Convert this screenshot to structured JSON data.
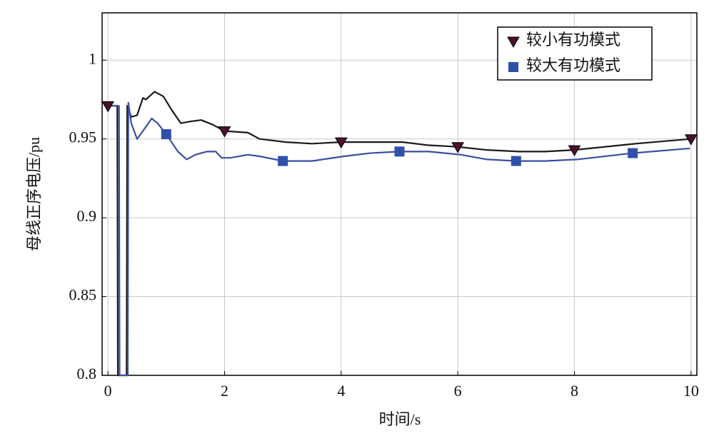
{
  "chart_data": {
    "type": "line",
    "xlabel": "时间/s",
    "ylabel": "母线正序电压/pu",
    "xlim": [
      -0.1,
      10.1
    ],
    "ylim": [
      0.8,
      1.03
    ],
    "xticks": [
      0,
      2,
      4,
      6,
      8,
      10
    ],
    "yticks": [
      0.8,
      0.85,
      0.9,
      0.95,
      1
    ],
    "grid": true,
    "legend": "upper right",
    "series": [
      {
        "name": "较小有功模式",
        "color": "#1a1a1a",
        "marker": "triangle-down",
        "marker_color": "#4a1030",
        "x": [
          0,
          0.16,
          0.17,
          0.32,
          0.33,
          0.4,
          0.5,
          0.6,
          0.65,
          0.8,
          0.95,
          1.1,
          1.25,
          1.4,
          1.6,
          1.8,
          2,
          2.4,
          2.6,
          3.05,
          3.5,
          4,
          4.5,
          5.05,
          5.5,
          6,
          6.5,
          7.05,
          7.5,
          8,
          9.05,
          10
        ],
        "values": [
          0.971,
          0.971,
          0.8,
          0.8,
          0.971,
          0.964,
          0.965,
          0.976,
          0.975,
          0.98,
          0.977,
          0.968,
          0.96,
          0.961,
          0.962,
          0.959,
          0.955,
          0.954,
          0.95,
          0.948,
          0.947,
          0.948,
          0.948,
          0.948,
          0.946,
          0.945,
          0.943,
          0.942,
          0.942,
          0.943,
          0.947,
          0.95
        ]
      },
      {
        "name": "较大有功模式",
        "color": "#3a4fa0",
        "marker": "square",
        "marker_color": "#3050a8",
        "x": [
          0.05,
          0.19,
          0.2,
          0.34,
          0.35,
          0.4,
          0.5,
          0.6,
          0.75,
          0.85,
          1,
          1.2,
          1.35,
          1.5,
          1.7,
          1.85,
          1.95,
          2.1,
          2.4,
          2.6,
          3,
          3.5,
          4.05,
          4.5,
          5,
          5.5,
          6.05,
          6.5,
          7,
          7.5,
          8.05,
          9,
          9.98
        ],
        "values": [
          0.971,
          0.971,
          0.8,
          0.8,
          0.973,
          0.96,
          0.95,
          0.955,
          0.963,
          0.96,
          0.953,
          0.942,
          0.937,
          0.94,
          0.942,
          0.942,
          0.938,
          0.938,
          0.94,
          0.939,
          0.936,
          0.936,
          0.939,
          0.941,
          0.942,
          0.942,
          0.94,
          0.937,
          0.936,
          0.936,
          0.937,
          0.941,
          0.944
        ]
      }
    ]
  }
}
